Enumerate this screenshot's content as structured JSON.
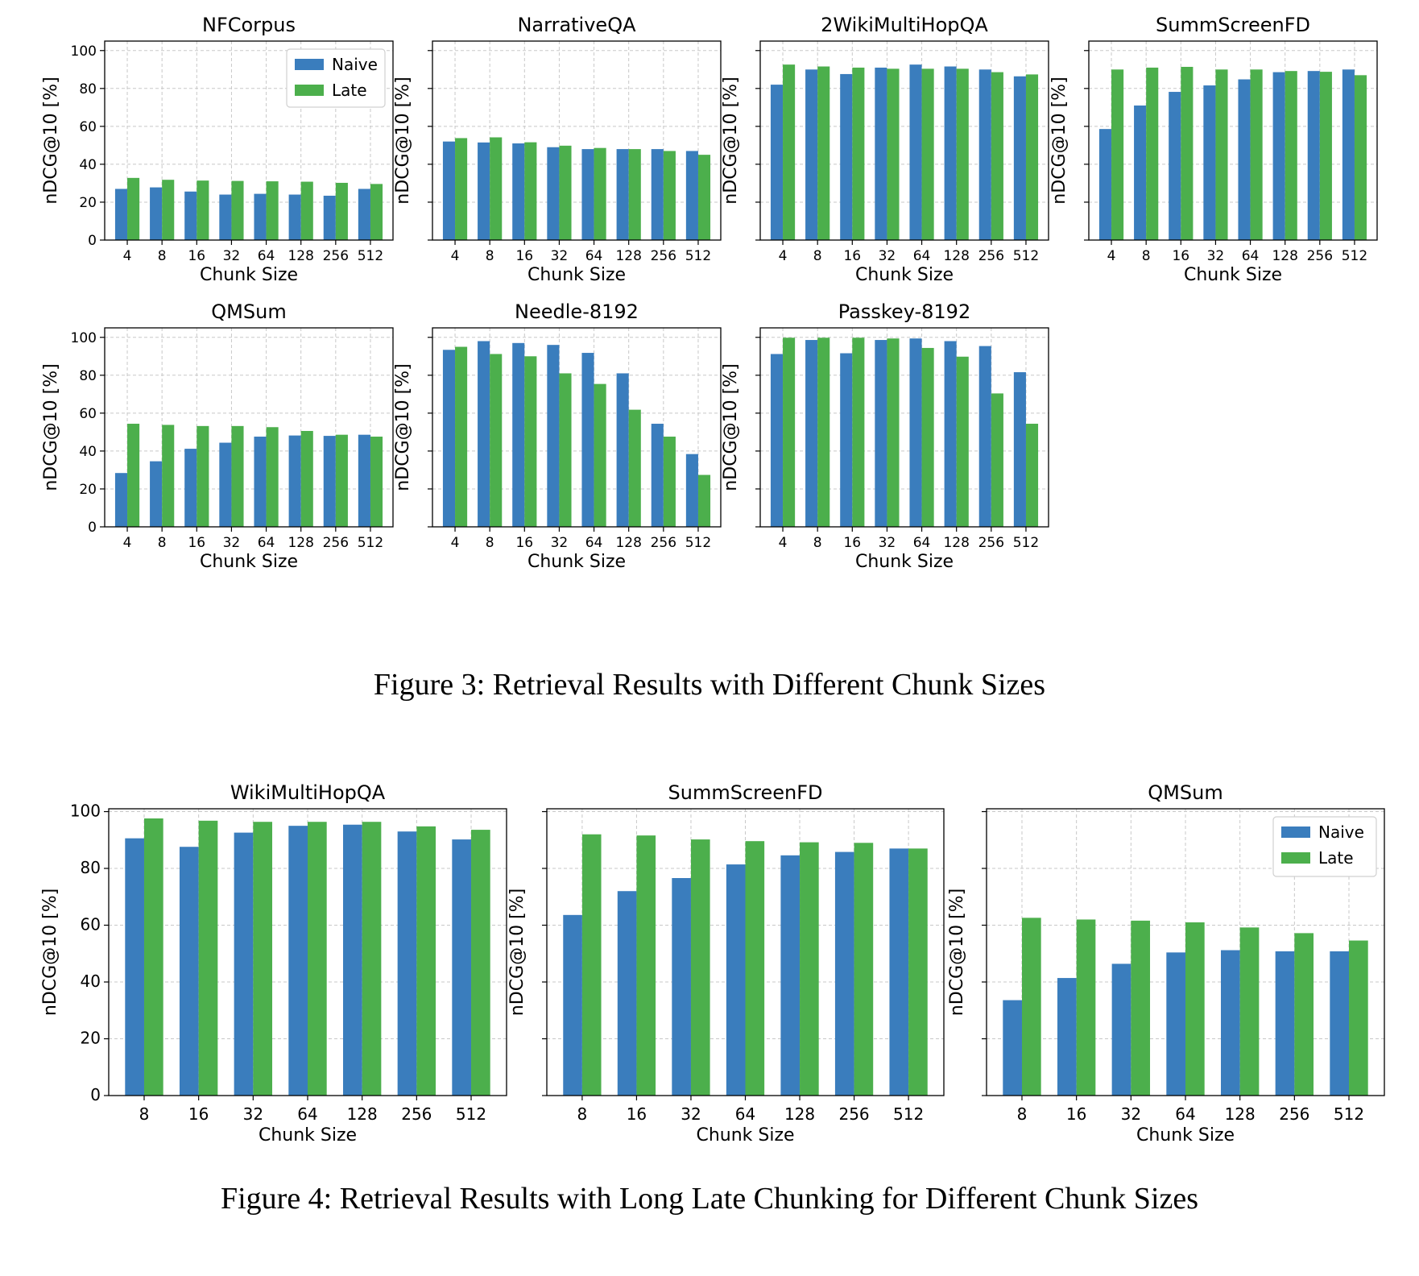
{
  "figure3": {
    "caption": "Figure 3: Retrieval Results with Different Chunk Sizes",
    "charts": [
      {
        "title": "NFCorpus",
        "legend": true
      },
      {
        "title": "NarrativeQA",
        "legend": false
      },
      {
        "title": "2WikiMultiHopQA",
        "legend": false
      },
      {
        "title": "SummScreenFD",
        "legend": false
      },
      {
        "title": "QMSum",
        "legend": false
      },
      {
        "title": "Needle-8192",
        "legend": false
      },
      {
        "title": "Passkey-8192",
        "legend": false
      }
    ]
  },
  "figure4": {
    "caption": "Figure 4: Retrieval Results with Long Late Chunking for Different Chunk Sizes",
    "charts": [
      {
        "title": "WikiMultiHopQA",
        "legend": false
      },
      {
        "title": "SummScreenFD",
        "legend": false
      },
      {
        "title": "QMSum",
        "legend": true
      }
    ]
  },
  "colors": {
    "naive": "#3a7dbd",
    "late": "#4caf4c",
    "grid": "#c8c8c8"
  },
  "chart_data": [
    {
      "type": "bar",
      "title": "NFCorpus",
      "categories": [
        "4",
        "8",
        "16",
        "32",
        "64",
        "128",
        "256",
        "512"
      ],
      "xlabel": "Chunk Size",
      "ylabel": "nDCG@10 [%]",
      "ylim": [
        0,
        105
      ],
      "yticks": [
        0,
        20,
        40,
        60,
        80,
        100
      ],
      "grid": true,
      "legend": "top-right",
      "series": [
        {
          "name": "Naive",
          "values": [
            27.0,
            27.8,
            25.6,
            24.0,
            24.4,
            24.0,
            23.4,
            27.0
          ]
        },
        {
          "name": "Late",
          "values": [
            32.8,
            31.8,
            31.4,
            31.2,
            31.0,
            30.8,
            30.2,
            29.6
          ]
        }
      ]
    },
    {
      "type": "bar",
      "title": "NarrativeQA",
      "categories": [
        "4",
        "8",
        "16",
        "32",
        "64",
        "128",
        "256",
        "512"
      ],
      "xlabel": "Chunk Size",
      "ylabel": "nDCG@10 [%]",
      "ylim": [
        0,
        105
      ],
      "yticks": [
        0,
        20,
        40,
        60,
        80,
        100
      ],
      "grid": true,
      "series": [
        {
          "name": "Naive",
          "values": [
            52.0,
            51.5,
            51.0,
            49.0,
            48.0,
            48.0,
            48.0,
            47.0
          ]
        },
        {
          "name": "Late",
          "values": [
            53.8,
            54.2,
            51.6,
            49.8,
            48.6,
            48.0,
            47.0,
            45.0
          ]
        }
      ]
    },
    {
      "type": "bar",
      "title": "2WikiMultiHopQA",
      "categories": [
        "4",
        "8",
        "16",
        "32",
        "64",
        "128",
        "256",
        "512"
      ],
      "xlabel": "Chunk Size",
      "ylabel": "nDCG@10 [%]",
      "ylim": [
        0,
        105
      ],
      "yticks": [
        0,
        20,
        40,
        60,
        80,
        100
      ],
      "grid": true,
      "series": [
        {
          "name": "Naive",
          "values": [
            82.0,
            90.0,
            87.6,
            91.0,
            92.6,
            91.6,
            90.0,
            86.4
          ]
        },
        {
          "name": "Late",
          "values": [
            92.6,
            91.6,
            91.0,
            90.4,
            90.4,
            90.4,
            88.6,
            87.4
          ]
        }
      ]
    },
    {
      "type": "bar",
      "title": "SummScreenFD",
      "categories": [
        "4",
        "8",
        "16",
        "32",
        "64",
        "128",
        "256",
        "512"
      ],
      "xlabel": "Chunk Size",
      "ylabel": "nDCG@10 [%]",
      "ylim": [
        0,
        105
      ],
      "yticks": [
        0,
        20,
        40,
        60,
        80,
        100
      ],
      "grid": true,
      "series": [
        {
          "name": "Naive",
          "values": [
            58.6,
            71.0,
            78.2,
            81.6,
            84.8,
            88.6,
            89.2,
            90.0
          ]
        },
        {
          "name": "Late",
          "values": [
            90.0,
            91.0,
            91.4,
            90.0,
            90.0,
            89.2,
            88.8,
            87.0
          ]
        }
      ]
    },
    {
      "type": "bar",
      "title": "QMSum",
      "categories": [
        "4",
        "8",
        "16",
        "32",
        "64",
        "128",
        "256",
        "512"
      ],
      "xlabel": "Chunk Size",
      "ylabel": "nDCG@10 [%]",
      "ylim": [
        0,
        105
      ],
      "yticks": [
        0,
        20,
        40,
        60,
        80,
        100
      ],
      "grid": true,
      "series": [
        {
          "name": "Naive",
          "values": [
            28.4,
            34.6,
            41.2,
            44.4,
            47.6,
            48.2,
            48.0,
            48.6
          ]
        },
        {
          "name": "Late",
          "values": [
            54.4,
            53.8,
            53.2,
            53.2,
            52.6,
            50.6,
            48.6,
            47.6
          ]
        }
      ]
    },
    {
      "type": "bar",
      "title": "Needle-8192",
      "categories": [
        "4",
        "8",
        "16",
        "32",
        "64",
        "128",
        "256",
        "512"
      ],
      "xlabel": "Chunk Size",
      "ylabel": "nDCG@10 [%]",
      "ylim": [
        0,
        105
      ],
      "yticks": [
        0,
        20,
        40,
        60,
        80,
        100
      ],
      "grid": true,
      "series": [
        {
          "name": "Naive",
          "values": [
            93.4,
            98.0,
            97.0,
            96.0,
            91.8,
            81.0,
            54.4,
            38.4
          ]
        },
        {
          "name": "Late",
          "values": [
            95.0,
            91.2,
            90.0,
            81.0,
            75.4,
            61.8,
            47.6,
            27.4
          ]
        }
      ]
    },
    {
      "type": "bar",
      "title": "Passkey-8192",
      "categories": [
        "4",
        "8",
        "16",
        "32",
        "64",
        "128",
        "256",
        "512"
      ],
      "xlabel": "Chunk Size",
      "ylabel": "nDCG@10 [%]",
      "ylim": [
        0,
        105
      ],
      "yticks": [
        0,
        20,
        40,
        60,
        80,
        100
      ],
      "grid": true,
      "series": [
        {
          "name": "Naive",
          "values": [
            91.2,
            98.6,
            91.6,
            98.6,
            99.4,
            98.0,
            95.4,
            81.6
          ]
        },
        {
          "name": "Late",
          "values": [
            99.8,
            99.8,
            99.8,
            99.4,
            94.4,
            89.8,
            70.4,
            54.4
          ]
        }
      ]
    },
    {
      "type": "bar",
      "title": "WikiMultiHopQA",
      "categories": [
        "8",
        "16",
        "32",
        "64",
        "128",
        "256",
        "512"
      ],
      "xlabel": "Chunk Size",
      "ylabel": "nDCG@10 [%]",
      "ylim": [
        0,
        101
      ],
      "yticks": [
        0,
        20,
        40,
        60,
        80,
        100
      ],
      "grid": true,
      "series": [
        {
          "name": "Naive",
          "values": [
            90.6,
            87.6,
            92.6,
            95.0,
            95.4,
            93.0,
            90.2
          ]
        },
        {
          "name": "Late",
          "values": [
            97.6,
            96.8,
            96.4,
            96.4,
            96.4,
            94.8,
            93.6
          ]
        }
      ]
    },
    {
      "type": "bar",
      "title": "SummScreenFD",
      "categories": [
        "8",
        "16",
        "32",
        "64",
        "128",
        "256",
        "512"
      ],
      "xlabel": "Chunk Size",
      "ylabel": "nDCG@10 [%]",
      "ylim": [
        0,
        101
      ],
      "yticks": [
        0,
        20,
        40,
        60,
        80,
        100
      ],
      "grid": true,
      "series": [
        {
          "name": "Naive",
          "values": [
            63.6,
            72.0,
            76.6,
            81.4,
            84.6,
            85.8,
            87.0
          ]
        },
        {
          "name": "Late",
          "values": [
            92.0,
            91.6,
            90.2,
            89.6,
            89.2,
            89.0,
            87.0
          ]
        }
      ]
    },
    {
      "type": "bar",
      "title": "QMSum",
      "categories": [
        "8",
        "16",
        "32",
        "64",
        "128",
        "256",
        "512"
      ],
      "xlabel": "Chunk Size",
      "ylabel": "nDCG@10 [%]",
      "ylim": [
        0,
        101
      ],
      "yticks": [
        0,
        20,
        40,
        60,
        80,
        100
      ],
      "grid": true,
      "legend": "top-right",
      "series": [
        {
          "name": "Naive",
          "values": [
            33.6,
            41.4,
            46.4,
            50.4,
            51.2,
            50.8,
            50.8
          ]
        },
        {
          "name": "Late",
          "values": [
            62.6,
            62.0,
            61.6,
            61.0,
            59.2,
            57.2,
            54.6
          ]
        }
      ]
    }
  ]
}
